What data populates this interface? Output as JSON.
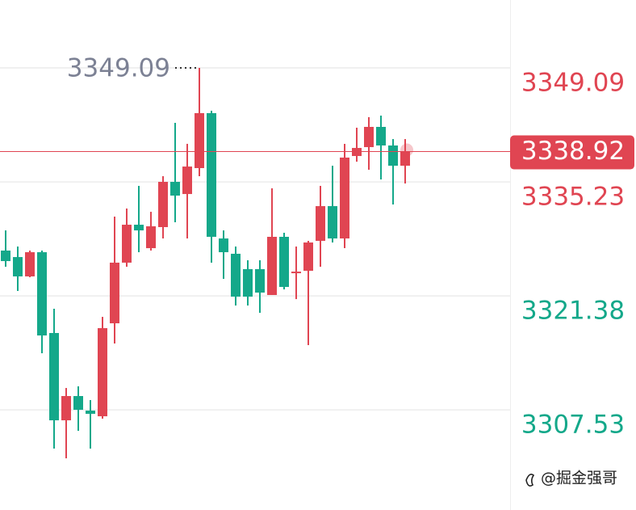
{
  "chart_data": {
    "type": "candlestick",
    "open": [
      3326.89,
      3326.1,
      3323.75,
      3326.69,
      3316.87,
      3306.26,
      3309.21,
      3307.44,
      3306.75,
      3318.05,
      3325.42,
      3330.03,
      3327.18,
      3329.74,
      3335.24,
      3333.76,
      3336.91,
      3343.59,
      3328.36,
      3326.5,
      3324.63,
      3324.63,
      3321.49,
      3328.56,
      3324.14,
      3324.43,
      3328.07,
      3332.29,
      3328.36,
      3338.38,
      3339.46,
      3341.92,
      3339.66,
      3337.2
    ],
    "high": [
      3329.34,
      3327.38,
      3326.89,
      3326.89,
      3319.82,
      3310.19,
      3310.39,
      3308.72,
      3318.83,
      3331.01,
      3332.0,
      3334.75,
      3331.6,
      3335.93,
      3342.41,
      3339.86,
      3349.09,
      3343.88,
      3329.34,
      3327.38,
      3325.71,
      3325.71,
      3334.45,
      3329.05,
      3327.38,
      3328.07,
      3334.75,
      3337.2,
      3339.86,
      3341.82,
      3343.1,
      3343.29,
      3340.44,
      3340.44
    ],
    "low": [
      3324.92,
      3321.98,
      3323.65,
      3314.41,
      3302.82,
      3301.64,
      3304.98,
      3302.82,
      3306.46,
      3315.59,
      3324.92,
      3326.69,
      3326.89,
      3328.36,
      3330.33,
      3328.36,
      3335.93,
      3325.42,
      3323.45,
      3320.21,
      3320.21,
      3319.32,
      3321.49,
      3322.17,
      3320.99,
      3315.4,
      3324.92,
      3327.87,
      3327.18,
      3337.69,
      3336.71,
      3335.53,
      3332.49,
      3335.04
    ],
    "close": [
      3325.61,
      3323.75,
      3326.69,
      3316.57,
      3306.26,
      3309.21,
      3307.54,
      3307.05,
      3317.46,
      3325.42,
      3330.03,
      3329.34,
      3329.84,
      3335.24,
      3333.57,
      3337.1,
      3343.59,
      3328.56,
      3326.69,
      3321.29,
      3321.29,
      3321.78,
      3328.56,
      3322.47,
      3324.33,
      3327.87,
      3332.29,
      3328.36,
      3338.19,
      3339.36,
      3341.92,
      3339.66,
      3337.2,
      3338.92
    ],
    "up_color": "#e04552",
    "down_color": "#14a88a",
    "ylim": [
      3295.36,
      3357.34
    ],
    "yticks": [
      3307.53,
      3321.38,
      3335.23,
      3349.09
    ],
    "ytick_colors": [
      "#14a88a",
      "#14a88a",
      "#e04552",
      "#e04552"
    ],
    "grid": true,
    "watermark": "@掘金强哥"
  }
}
